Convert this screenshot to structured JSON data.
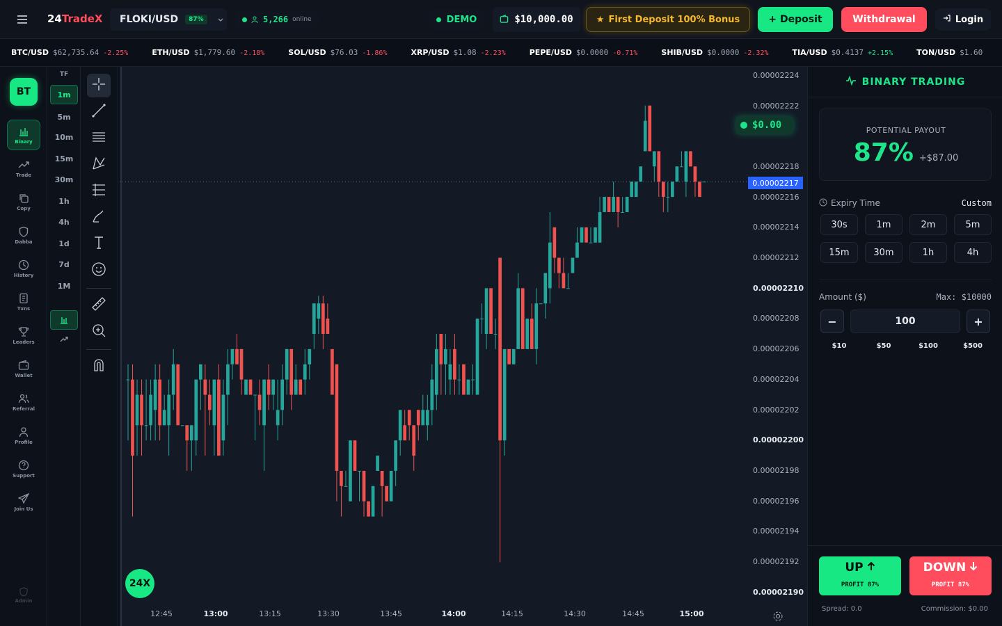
{
  "header": {
    "logo_prefix": "24",
    "logo_brand": "TradeX",
    "pair": "FLOKI/USD",
    "pair_payout": "87%",
    "online_count": "5,266",
    "online_label": "online",
    "mode": "DEMO",
    "balance": "$10,000.00",
    "bonus": "First Deposit 100% Bonus",
    "deposit_label": "+ Deposit",
    "withdrawal_label": "Withdrawal",
    "login_label": "Login"
  },
  "ticker": [
    {
      "symbol": "BTC/USD",
      "price": "$62,735.64",
      "change": "-2.25%",
      "dir": "down"
    },
    {
      "symbol": "ETH/USD",
      "price": "$1,779.60",
      "change": "-2.18%",
      "dir": "down"
    },
    {
      "symbol": "SOL/USD",
      "price": "$76.03",
      "change": "-1.86%",
      "dir": "down"
    },
    {
      "symbol": "XRP/USD",
      "price": "$1.08",
      "change": "-2.23%",
      "dir": "down"
    },
    {
      "symbol": "PEPE/USD",
      "price": "$0.0000",
      "change": "-0.71%",
      "dir": "down"
    },
    {
      "symbol": "SHIB/USD",
      "price": "$0.0000",
      "change": "-2.32%",
      "dir": "down"
    },
    {
      "symbol": "TIA/USD",
      "price": "$0.4137",
      "change": "+2.15%",
      "dir": "up"
    },
    {
      "symbol": "TON/USD",
      "price": "$1.60",
      "change": "",
      "dir": "down"
    }
  ],
  "sidebar": {
    "badge": "BT",
    "items": [
      {
        "label": "Binary",
        "icon": "bar-chart-icon"
      },
      {
        "label": "Trade",
        "icon": "trend-icon"
      },
      {
        "label": "Copy",
        "icon": "copy-icon"
      },
      {
        "label": "Dabba",
        "icon": "shield-icon"
      },
      {
        "label": "History",
        "icon": "clock-icon"
      },
      {
        "label": "Txns",
        "icon": "receipt-icon"
      },
      {
        "label": "Leaders",
        "icon": "trophy-icon"
      },
      {
        "label": "Wallet",
        "icon": "wallet-icon"
      },
      {
        "label": "Referral",
        "icon": "users-icon"
      },
      {
        "label": "Profile",
        "icon": "user-icon"
      },
      {
        "label": "Support",
        "icon": "help-icon"
      },
      {
        "label": "Join Us",
        "icon": "send-icon"
      }
    ],
    "admin_label": "Admin"
  },
  "timeframes": {
    "title": "TF",
    "items": [
      "1m",
      "5m",
      "10m",
      "15m",
      "30m",
      "1h",
      "4h",
      "1d",
      "7d",
      "1M"
    ],
    "active": "1m"
  },
  "chart": {
    "pnl": "$0.00",
    "current_price_label": "0.00002217",
    "leverage_badge": "24X",
    "y_labels": [
      {
        "v": "0.00002224",
        "b": false
      },
      {
        "v": "0.00002222",
        "b": false
      },
      {
        "v": "0.00002218",
        "b": false
      },
      {
        "v": "0.00002216",
        "b": false
      },
      {
        "v": "0.00002214",
        "b": false
      },
      {
        "v": "0.00002212",
        "b": false
      },
      {
        "v": "0.00002210",
        "b": true
      },
      {
        "v": "0.00002208",
        "b": false
      },
      {
        "v": "0.00002206",
        "b": false
      },
      {
        "v": "0.00002204",
        "b": false
      },
      {
        "v": "0.00002202",
        "b": false
      },
      {
        "v": "0.00002200",
        "b": true
      },
      {
        "v": "0.00002198",
        "b": false
      },
      {
        "v": "0.00002196",
        "b": false
      },
      {
        "v": "0.00002194",
        "b": false
      },
      {
        "v": "0.00002192",
        "b": false
      },
      {
        "v": "0.00002190",
        "b": true
      }
    ],
    "x_labels": [
      {
        "t": "12:45",
        "b": false
      },
      {
        "t": "13:00",
        "b": true
      },
      {
        "t": "13:15",
        "b": false
      },
      {
        "t": "13:30",
        "b": false
      },
      {
        "t": "13:45",
        "b": false
      },
      {
        "t": "14:00",
        "b": true
      },
      {
        "t": "14:15",
        "b": false
      },
      {
        "t": "14:30",
        "b": false
      },
      {
        "t": "14:45",
        "b": false
      },
      {
        "t": "15:00",
        "b": true
      }
    ],
    "colors": {
      "up": "#26a69a",
      "down": "#ef5350",
      "bg": "#131a26"
    }
  },
  "chart_data": {
    "type": "candlestick",
    "ylim": [
      2.19e-05,
      2.224e-05
    ],
    "candles": [
      {
        "o": 2.2204,
        "c": 2.2204,
        "h": 2.2205,
        "l": 2.22
      },
      {
        "o": 2.2204,
        "c": 2.2199,
        "h": 2.2205,
        "l": 2.2195
      },
      {
        "o": 2.2201,
        "c": 2.2203,
        "h": 2.2204,
        "l": 2.2199
      },
      {
        "o": 2.2203,
        "c": 2.2201,
        "h": 2.2204,
        "l": 2.2199
      },
      {
        "o": 2.2201,
        "c": 2.2201,
        "h": 2.2204,
        "l": 2.22
      },
      {
        "o": 2.2201,
        "c": 2.2203,
        "h": 2.2204,
        "l": 2.22
      },
      {
        "o": 2.2202,
        "c": 2.2204,
        "h": 2.2205,
        "l": 2.22
      },
      {
        "o": 2.2204,
        "c": 2.2201,
        "h": 2.2205,
        "l": 2.22
      },
      {
        "o": 2.2201,
        "c": 2.2202,
        "h": 2.2203,
        "l": 2.2201
      },
      {
        "o": 2.2201,
        "c": 2.2203,
        "h": 2.2204,
        "l": 2.2199
      },
      {
        "o": 2.2203,
        "c": 2.2205,
        "h": 2.2206,
        "l": 2.2202
      },
      {
        "o": 2.2205,
        "c": 2.2201,
        "h": 2.2205,
        "l": 2.2201
      },
      {
        "o": 2.2201,
        "c": 2.2201,
        "h": 2.2201,
        "l": 2.2201
      },
      {
        "o": 2.2201,
        "c": 2.22,
        "h": 2.2201,
        "l": 2.2198
      },
      {
        "o": 2.22,
        "c": 2.2201,
        "h": 2.2201,
        "l": 2.2198
      },
      {
        "o": 2.22,
        "c": 2.2204,
        "h": 2.2204,
        "l": 2.2199
      },
      {
        "o": 2.2204,
        "c": 2.2205,
        "h": 2.2205,
        "l": 2.2202
      },
      {
        "o": 2.2204,
        "c": 2.2203,
        "h": 2.2205,
        "l": 2.2199
      },
      {
        "o": 2.2203,
        "c": 2.2202,
        "h": 2.2204,
        "l": 2.2201
      },
      {
        "o": 2.2201,
        "c": 2.2204,
        "h": 2.2204,
        "l": 2.2199
      },
      {
        "o": 2.2204,
        "c": 2.2199,
        "h": 2.2205,
        "l": 2.2199
      },
      {
        "o": 2.22,
        "c": 2.2203,
        "h": 2.2204,
        "l": 2.2199
      },
      {
        "o": 2.2203,
        "c": 2.2205,
        "h": 2.2206,
        "l": 2.2201
      },
      {
        "o": 2.2205,
        "c": 2.2206,
        "h": 2.2206,
        "l": 2.2204
      },
      {
        "o": 2.2206,
        "c": 2.2205,
        "h": 2.2207,
        "l": 2.2205
      },
      {
        "o": 2.2206,
        "c": 2.2204,
        "h": 2.2206,
        "l": 2.2203
      },
      {
        "o": 2.2203,
        "c": 2.2204,
        "h": 2.2204,
        "l": 2.2203
      },
      {
        "o": 2.2204,
        "c": 2.2203,
        "h": 2.2204,
        "l": 2.2203
      },
      {
        "o": 2.2203,
        "c": 2.2203,
        "h": 2.2203,
        "l": 2.22
      },
      {
        "o": 2.2203,
        "c": 2.2202,
        "h": 2.2204,
        "l": 2.2201
      },
      {
        "o": 2.2201,
        "c": 2.2204,
        "h": 2.2204,
        "l": 2.2198
      },
      {
        "o": 2.2204,
        "c": 2.2203,
        "h": 2.2205,
        "l": 2.2202
      },
      {
        "o": 2.2203,
        "c": 2.2204,
        "h": 2.2204,
        "l": 2.2202
      },
      {
        "o": 2.2201,
        "c": 2.2202,
        "h": 2.2204,
        "l": 2.22
      },
      {
        "o": 2.2202,
        "c": 2.2204,
        "h": 2.2205,
        "l": 2.2201
      },
      {
        "o": 2.2204,
        "c": 2.2206,
        "h": 2.2206,
        "l": 2.2203
      },
      {
        "o": 2.2206,
        "c": 2.2203,
        "h": 2.2206,
        "l": 2.2202
      },
      {
        "o": 2.2203,
        "c": 2.2204,
        "h": 2.2205,
        "l": 2.2203
      },
      {
        "o": 2.2204,
        "c": 2.2203,
        "h": 2.2204,
        "l": 2.2203
      },
      {
        "o": 2.2204,
        "c": 2.2205,
        "h": 2.2206,
        "l": 2.2203
      },
      {
        "o": 2.2205,
        "c": 2.2206,
        "h": 2.2206,
        "l": 2.2204
      },
      {
        "o": 2.2207,
        "c": 2.2209,
        "h": 2.2209,
        "l": 2.2206
      },
      {
        "o": 2.2208,
        "c": 2.2209,
        "h": 2.22095,
        "l": 2.2207
      },
      {
        "o": 2.2209,
        "c": 2.2207,
        "h": 2.22095,
        "l": 2.2206
      },
      {
        "o": 2.2208,
        "c": 2.2207,
        "h": 2.2209,
        "l": 2.2207
      },
      {
        "o": 2.2206,
        "c": 2.2203,
        "h": 2.2206,
        "l": 2.2203
      },
      {
        "o": 2.2205,
        "c": 2.2198,
        "h": 2.2205,
        "l": 2.2196
      },
      {
        "o": 2.2198,
        "c": 2.2197,
        "h": 2.2198,
        "l": 2.2195
      },
      {
        "o": 2.2197,
        "c": 2.2197,
        "h": 2.2198,
        "l": 2.2197
      },
      {
        "o": 2.2196,
        "c": 2.22,
        "h": 2.22,
        "l": 2.2196
      },
      {
        "o": 2.22,
        "c": 2.2198,
        "h": 2.22,
        "l": 2.2198
      },
      {
        "o": 2.2198,
        "c": 2.2198,
        "h": 2.2198,
        "l": 2.2196
      },
      {
        "o": 2.2198,
        "c": 2.2196,
        "h": 2.2198,
        "l": 2.2195
      },
      {
        "o": 2.2196,
        "c": 2.2195,
        "h": 2.2196,
        "l": 2.2195
      },
      {
        "o": 2.2195,
        "c": 2.2197,
        "h": 2.2197,
        "l": 2.2195
      },
      {
        "o": 2.2198,
        "c": 2.2199,
        "h": 2.2199,
        "l": 2.2198
      },
      {
        "o": 2.2198,
        "c": 2.2197,
        "h": 2.2198,
        "l": 2.2195
      },
      {
        "o": 2.2197,
        "c": 2.2196,
        "h": 2.2197,
        "l": 2.2196
      },
      {
        "o": 2.2196,
        "c": 2.2198,
        "h": 2.2198,
        "l": 2.2196
      },
      {
        "o": 2.2198,
        "c": 2.22,
        "h": 2.22,
        "l": 2.2197
      },
      {
        "o": 2.22,
        "c": 2.2202,
        "h": 2.2202,
        "l": 2.2199
      },
      {
        "o": 2.2201,
        "c": 2.22,
        "h": 2.2202,
        "l": 2.22
      },
      {
        "o": 2.2202,
        "c": 2.2201,
        "h": 2.2202,
        "l": 2.22
      },
      {
        "o": 2.2201,
        "c": 2.2199,
        "h": 2.2201,
        "l": 2.2198
      },
      {
        "o": 2.2202,
        "c": 2.2201,
        "h": 2.2202,
        "l": 2.22
      },
      {
        "o": 2.2201,
        "c": 2.2202,
        "h": 2.2203,
        "l": 2.2201
      },
      {
        "o": 2.2201,
        "c": 2.2202,
        "h": 2.2203,
        "l": 2.22
      },
      {
        "o": 2.2202,
        "c": 2.2204,
        "h": 2.2205,
        "l": 2.2201
      },
      {
        "o": 2.2203,
        "c": 2.2206,
        "h": 2.2207,
        "l": 2.2202
      },
      {
        "o": 2.2207,
        "c": 2.2205,
        "h": 2.2207,
        "l": 2.2203
      },
      {
        "o": 2.2205,
        "c": 2.2206,
        "h": 2.2207,
        "l": 2.2203
      },
      {
        "o": 2.2204,
        "c": 2.2205,
        "h": 2.2206,
        "l": 2.2203
      },
      {
        "o": 2.2206,
        "c": 2.2204,
        "h": 2.2207,
        "l": 2.2203
      },
      {
        "o": 2.2204,
        "c": 2.2204,
        "h": 2.2205,
        "l": 2.2203
      },
      {
        "o": 2.2205,
        "c": 2.2203,
        "h": 2.2205,
        "l": 2.2203
      },
      {
        "o": 2.2203,
        "c": 2.2204,
        "h": 2.2204,
        "l": 2.2203
      },
      {
        "o": 2.2204,
        "c": 2.2204,
        "h": 2.2205,
        "l": 2.2203
      },
      {
        "o": 2.2203,
        "c": 2.2208,
        "h": 2.2208,
        "l": 2.2203
      },
      {
        "o": 2.2208,
        "c": 2.2208,
        "h": 2.2209,
        "l": 2.2207
      },
      {
        "o": 2.2207,
        "c": 2.221,
        "h": 2.221,
        "l": 2.2206
      },
      {
        "o": 2.221,
        "c": 2.2207,
        "h": 2.221,
        "l": 2.2207
      },
      {
        "o": 2.2207,
        "c": 2.2207,
        "h": 2.2208,
        "l": 2.2206
      },
      {
        "o": 2.2212,
        "c": 2.22,
        "h": 2.2212,
        "l": 2.2192
      },
      {
        "o": 2.22,
        "c": 2.2206,
        "h": 2.2206,
        "l": 2.2199
      },
      {
        "o": 2.2206,
        "c": 2.2205,
        "h": 2.2206,
        "l": 2.2205
      },
      {
        "o": 2.2205,
        "c": 2.2206,
        "h": 2.2206,
        "l": 2.2205
      },
      {
        "o": 2.2206,
        "c": 2.221,
        "h": 2.2211,
        "l": 2.2206
      },
      {
        "o": 2.221,
        "c": 2.2206,
        "h": 2.221,
        "l": 2.2206
      },
      {
        "o": 2.2206,
        "c": 2.2208,
        "h": 2.2208,
        "l": 2.2206
      },
      {
        "o": 2.2208,
        "c": 2.2206,
        "h": 2.2209,
        "l": 2.2206
      },
      {
        "o": 2.2206,
        "c": 2.2209,
        "h": 2.221,
        "l": 2.2205
      },
      {
        "o": 2.2209,
        "c": 2.2209,
        "h": 2.2209,
        "l": 2.2209
      },
      {
        "o": 2.2209,
        "c": 2.2211,
        "h": 2.2211,
        "l": 2.2208
      },
      {
        "o": 2.221,
        "c": 2.2213,
        "h": 2.2215,
        "l": 2.2209
      },
      {
        "o": 2.2214,
        "c": 2.2212,
        "h": 2.2214,
        "l": 2.2211
      },
      {
        "o": 2.2212,
        "c": 2.2211,
        "h": 2.2212,
        "l": 2.221
      },
      {
        "o": 2.2211,
        "c": 2.221,
        "h": 2.2212,
        "l": 2.221
      },
      {
        "o": 2.221,
        "c": 2.221,
        "h": 2.2211,
        "l": 2.221
      },
      {
        "o": 2.2211,
        "c": 2.2212,
        "h": 2.2212,
        "l": 2.2211
      },
      {
        "o": 2.2212,
        "c": 2.2213,
        "h": 2.2214,
        "l": 2.2212
      },
      {
        "o": 2.2213,
        "c": 2.2214,
        "h": 2.2214,
        "l": 2.2213
      },
      {
        "o": 2.2214,
        "c": 2.2213,
        "h": 2.2214,
        "l": 2.2213
      },
      {
        "o": 2.2213,
        "c": 2.2213,
        "h": 2.2214,
        "l": 2.2213
      },
      {
        "o": 2.2213,
        "c": 2.2214,
        "h": 2.2214,
        "l": 2.2213
      },
      {
        "o": 2.2213,
        "c": 2.2215,
        "h": 2.2216,
        "l": 2.2213
      },
      {
        "o": 2.2215,
        "c": 2.2216,
        "h": 2.2216,
        "l": 2.2215
      },
      {
        "o": 2.2216,
        "c": 2.2215,
        "h": 2.2216,
        "l": 2.2215
      },
      {
        "o": 2.2215,
        "c": 2.2216,
        "h": 2.2217,
        "l": 2.2215
      },
      {
        "o": 2.2216,
        "c": 2.2215,
        "h": 2.2216,
        "l": 2.2214
      },
      {
        "o": 2.2215,
        "c": 2.2215,
        "h": 2.2216,
        "l": 2.2215
      },
      {
        "o": 2.2215,
        "c": 2.2216,
        "h": 2.2216,
        "l": 2.2215
      },
      {
        "o": 2.2216,
        "c": 2.2217,
        "h": 2.2217,
        "l": 2.2216
      },
      {
        "o": 2.2216,
        "c": 2.2217,
        "h": 2.2217,
        "l": 2.2216
      },
      {
        "o": 2.2217,
        "c": 2.2218,
        "h": 2.2218,
        "l": 2.2217
      },
      {
        "o": 2.2219,
        "c": 2.2221,
        "h": 2.2222,
        "l": 2.2219
      },
      {
        "o": 2.2222,
        "c": 2.2219,
        "h": 2.2222,
        "l": 2.2219
      },
      {
        "o": 2.2218,
        "c": 2.2219,
        "h": 2.2219,
        "l": 2.2217
      },
      {
        "o": 2.2219,
        "c": 2.2217,
        "h": 2.2219,
        "l": 2.2216
      },
      {
        "o": 2.2217,
        "c": 2.2216,
        "h": 2.2217,
        "l": 2.2215
      },
      {
        "o": 2.2216,
        "c": 2.2216,
        "h": 2.2217,
        "l": 2.2215
      },
      {
        "o": 2.2216,
        "c": 2.2217,
        "h": 2.2217,
        "l": 2.2216
      },
      {
        "o": 2.2217,
        "c": 2.2218,
        "h": 2.2218,
        "l": 2.2217
      },
      {
        "o": 2.2218,
        "c": 2.2218,
        "h": 2.2219,
        "l": 2.2218
      },
      {
        "o": 2.2217,
        "c": 2.2219,
        "h": 2.2219,
        "l": 2.2216
      },
      {
        "o": 2.2219,
        "c": 2.2218,
        "h": 2.2219,
        "l": 2.2218
      },
      {
        "o": 2.2218,
        "c": 2.2217,
        "h": 2.2218,
        "l": 2.2216
      },
      {
        "o": 2.2217,
        "c": 2.2216,
        "h": 2.2217,
        "l": 2.2216
      },
      {
        "o": 2.2217,
        "c": 2.2217,
        "h": 2.2217,
        "l": 2.2217
      }
    ]
  },
  "panel": {
    "title": "BINARY TRADING",
    "payout_label": "POTENTIAL PAYOUT",
    "payout_pct": "87%",
    "payout_amount": "+$87.00",
    "expiry_label": "Expiry Time",
    "custom_label": "Custom",
    "expiry_options": [
      "30s",
      "1m",
      "2m",
      "5m",
      "15m",
      "30m",
      "1h",
      "4h"
    ],
    "amount_label": "Amount ($)",
    "max_label": "Max:",
    "max_value": "$10000",
    "amount_value": "100",
    "minus": "−",
    "plus": "+",
    "quick_amounts": [
      "$10",
      "$50",
      "$100",
      "$500"
    ],
    "up_label": "UP",
    "up_profit": "PROFIT 87%",
    "down_label": "DOWN",
    "down_profit": "PROFIT 87%",
    "spread": "Spread: 0.0",
    "commission": "Commission: $0.00"
  }
}
